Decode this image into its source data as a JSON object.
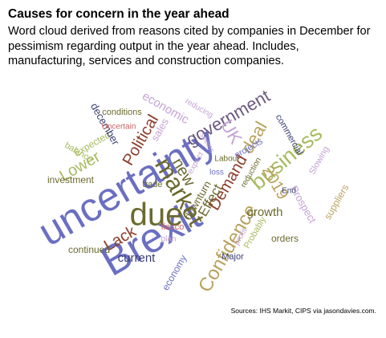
{
  "title": "Causes for concern in the year ahead",
  "subtitle": "Word cloud derived from reasons cited by companies in December for pessimism regarding output in the year ahead. Includes, manufacturing, services and construction companies.",
  "source": "Sources: IHS Markit, CIPS via jasondavies.com.",
  "word_cloud": {
    "words": [
      {
        "text": "uncertainty",
        "color": "#6b6fc2"
      },
      {
        "text": "Brexit",
        "color": "#6b6fc2"
      },
      {
        "text": "due",
        "color": "#6b6a2e"
      },
      {
        "text": "market",
        "color": "#6b6a2e"
      },
      {
        "text": "business",
        "color": "#a7ba61"
      },
      {
        "text": "government",
        "color": "#6b5a82"
      },
      {
        "text": "Confidence",
        "color": "#b9a15c"
      },
      {
        "text": "Lower",
        "color": "#a7ba61"
      },
      {
        "text": "Political",
        "color": "#8d3d2a"
      },
      {
        "text": "Lack",
        "color": "#8d3d2a"
      },
      {
        "text": "deal",
        "color": "#b9a15c"
      },
      {
        "text": "2019",
        "color": "#b9a15c"
      },
      {
        "text": "new",
        "color": "#6b6a2e"
      },
      {
        "text": "Demand",
        "color": "#8d3d2a"
      },
      {
        "text": "growth",
        "color": "#6b6a2e"
      },
      {
        "text": "current",
        "color": "#3b3f73"
      },
      {
        "text": "economic",
        "color": "#c5a3d4"
      },
      {
        "text": "Effect",
        "color": "#6b6a2e"
      },
      {
        "text": "UK",
        "color": "#c5a3d4"
      },
      {
        "text": "Expected",
        "color": "#a7ba61"
      },
      {
        "text": "december",
        "color": "#3b3f73"
      },
      {
        "text": "investment",
        "color": "#6b6a2e"
      },
      {
        "text": "sales",
        "color": "#c5a3d4"
      },
      {
        "text": "downturn",
        "color": "#6b6a2e"
      },
      {
        "text": "commercial",
        "color": "#3b3f73"
      },
      {
        "text": "orders",
        "color": "#6b6a2e"
      },
      {
        "text": "economy",
        "color": "#6b6fc2"
      },
      {
        "text": "continued",
        "color": "#6b6a2e"
      },
      {
        "text": "suppliers",
        "color": "#b9a15c"
      },
      {
        "text": "Prospect",
        "color": "#c5a3d4"
      },
      {
        "text": "Probably",
        "color": "#a7ba61"
      },
      {
        "text": "Major",
        "color": "#3b3f73"
      },
      {
        "text": "conditions",
        "color": "#6b6a2e"
      },
      {
        "text": "Uncertain",
        "color": "#c96565"
      },
      {
        "text": "projects",
        "color": "#6b6fc2"
      },
      {
        "text": "Labour",
        "color": "#6b6a2e"
      },
      {
        "text": "trade",
        "color": "#6b6a2e"
      },
      {
        "text": "fiasco",
        "color": "#c96565"
      },
      {
        "text": "plan",
        "color": "#c5a3d4"
      },
      {
        "text": "balance",
        "color": "#a7ba61"
      },
      {
        "text": "Slowing",
        "color": "#c5a3d4"
      },
      {
        "text": "reduction",
        "color": "#6b6a2e"
      },
      {
        "text": "reducing",
        "color": "#c5a3d4"
      },
      {
        "text": "loss",
        "color": "#6b6fc2"
      },
      {
        "text": "expect",
        "color": "#c5a3d4"
      },
      {
        "text": "seems",
        "color": "#c5a3d4"
      },
      {
        "text": "End",
        "color": "#3b3f73"
      },
      {
        "text": "profit",
        "color": "#c5a3d4"
      }
    ]
  }
}
